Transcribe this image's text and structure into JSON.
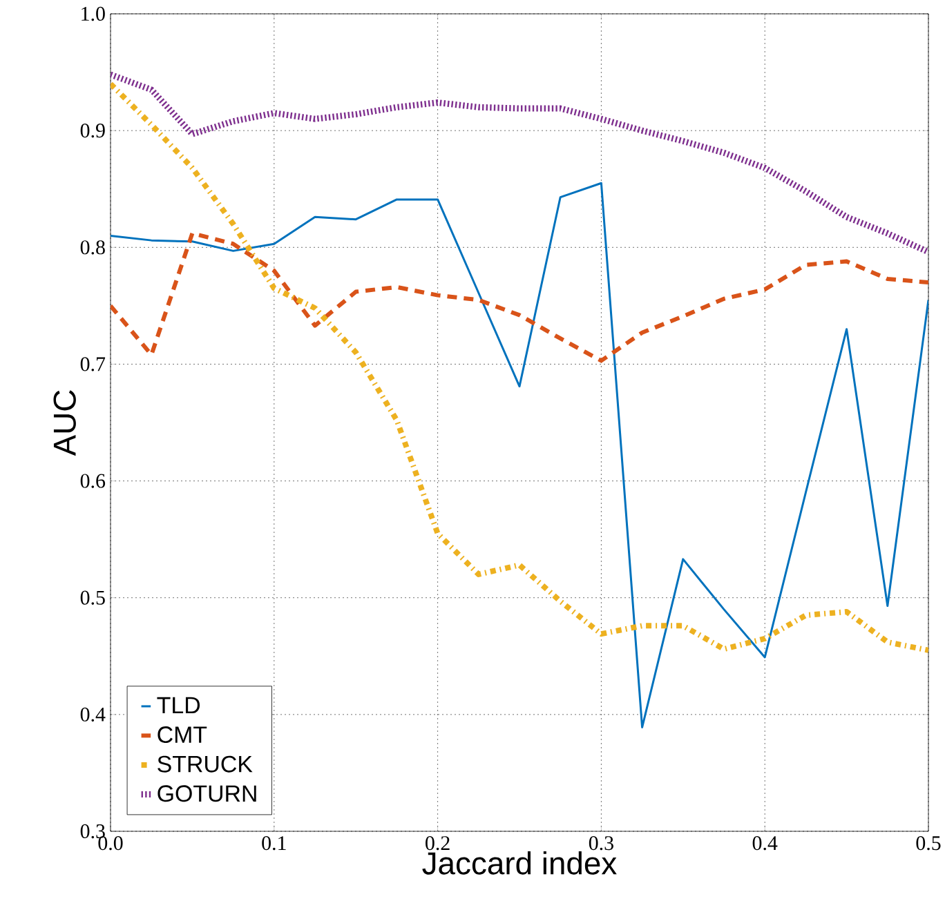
{
  "chart_data": {
    "type": "line",
    "xlabel": "Jaccard index",
    "ylabel": "AUC",
    "x": [
      0,
      0.025,
      0.05,
      0.075,
      0.1,
      0.125,
      0.15,
      0.175,
      0.2,
      0.225,
      0.25,
      0.275,
      0.3,
      0.325,
      0.35,
      0.375,
      0.4,
      0.425,
      0.45,
      0.475,
      0.5
    ],
    "series": [
      {
        "name": "TLD",
        "color": "#0072bd",
        "line_style": "solid",
        "values": [
          0.81,
          0.806,
          0.805,
          0.797,
          0.803,
          0.826,
          0.824,
          0.841,
          0.841,
          0.761,
          0.681,
          0.843,
          0.855,
          0.389,
          0.533,
          0.49,
          0.449,
          0.59,
          0.73,
          0.493,
          0.755
        ]
      },
      {
        "name": "CMT",
        "color": "#d95319",
        "line_style": "dashed",
        "values": [
          0.75,
          0.708,
          0.812,
          0.803,
          0.78,
          0.733,
          0.762,
          0.766,
          0.759,
          0.755,
          0.742,
          0.722,
          0.703,
          0.727,
          0.741,
          0.756,
          0.764,
          0.785,
          0.788,
          0.773,
          0.77
        ]
      },
      {
        "name": "STRUCK",
        "color": "#edb120",
        "line_style": "dashdot",
        "values": [
          0.94,
          0.905,
          0.868,
          0.82,
          0.765,
          0.748,
          0.71,
          0.652,
          0.555,
          0.52,
          0.528,
          0.497,
          0.469,
          0.476,
          0.476,
          0.456,
          0.465,
          0.485,
          0.488,
          0.462,
          0.455
        ]
      },
      {
        "name": "GOTURN",
        "color": "#7e2f8e",
        "line_style": "dotted",
        "values": [
          0.948,
          0.935,
          0.897,
          0.908,
          0.915,
          0.91,
          0.914,
          0.92,
          0.924,
          0.92,
          0.919,
          0.919,
          0.91,
          0.9,
          0.891,
          0.881,
          0.868,
          0.848,
          0.826,
          0.812,
          0.796
        ]
      }
    ],
    "xlim": [
      0,
      0.5
    ],
    "ylim": [
      0.3,
      1.0
    ],
    "xticks": [
      {
        "value": 0,
        "label": "0.0"
      },
      0.1,
      0.2,
      0.3,
      0.4,
      0.5
    ],
    "yticks": [
      0.3,
      0.4,
      0.5,
      0.6,
      0.7,
      0.8,
      0.9,
      {
        "value": 1.0,
        "label": "1.0"
      }
    ],
    "grid": true,
    "legend": "bottom left",
    "marker": "none"
  }
}
